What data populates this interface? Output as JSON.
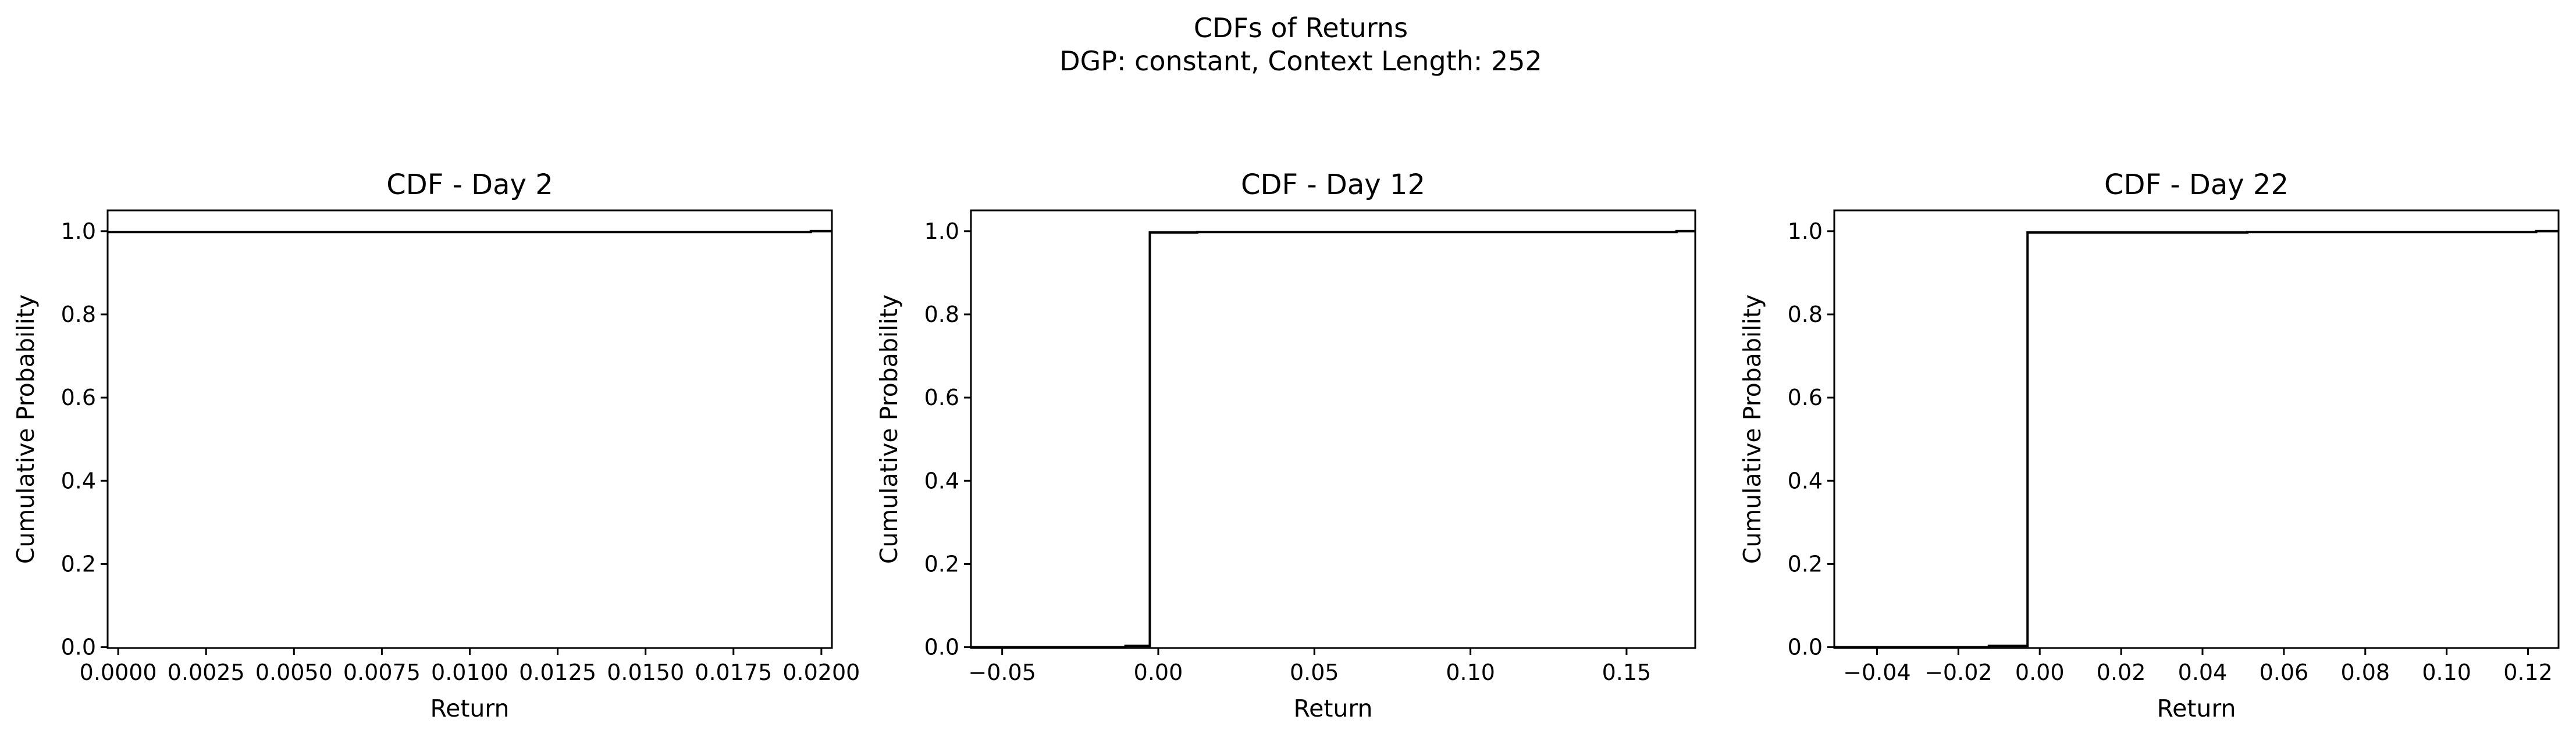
{
  "figure": {
    "title_line1": "CDFs of Returns",
    "title_line2": "DGP: constant, Context Length: 252"
  },
  "colors": {
    "line": "#000000",
    "axes": "#000000",
    "background": "#ffffff"
  },
  "chart_data": [
    {
      "type": "line",
      "step": true,
      "title": "CDF - Day 2",
      "xlabel": "Return",
      "ylabel": "Cumulative Probability",
      "xlim": [
        -0.0003,
        0.0203
      ],
      "ylim": [
        -0.002,
        1.05
      ],
      "xticks": [
        0.0,
        0.0025,
        0.005,
        0.0075,
        0.01,
        0.0125,
        0.015,
        0.0175,
        0.02
      ],
      "xtick_labels": [
        "0.0000",
        "0.0025",
        "0.0050",
        "0.0075",
        "0.0100",
        "0.0125",
        "0.0150",
        "0.0175",
        "0.0200"
      ],
      "yticks": [
        0.0,
        0.2,
        0.4,
        0.6,
        0.8,
        1.0
      ],
      "ytick_labels": [
        "0.0",
        "0.2",
        "0.4",
        "0.6",
        "0.8",
        "1.0"
      ],
      "grid": false,
      "series": [
        {
          "x": [
            -0.0003,
            0.0197,
            0.0197,
            0.0203
          ],
          "y": [
            0.998,
            0.998,
            1.0,
            1.0
          ]
        }
      ]
    },
    {
      "type": "line",
      "step": true,
      "title": "CDF - Day 12",
      "xlabel": "Return",
      "ylabel": "Cumulative Probability",
      "xlim": [
        -0.06,
        0.172
      ],
      "ylim": [
        -0.002,
        1.05
      ],
      "xticks": [
        -0.05,
        0.0,
        0.05,
        0.1,
        0.15
      ],
      "xtick_labels": [
        "−0.05",
        "0.00",
        "0.05",
        "0.10",
        "0.15"
      ],
      "yticks": [
        0.0,
        0.2,
        0.4,
        0.6,
        0.8,
        1.0
      ],
      "ytick_labels": [
        "0.0",
        "0.2",
        "0.4",
        "0.6",
        "0.8",
        "1.0"
      ],
      "grid": false,
      "series": [
        {
          "x": [
            -0.06,
            -0.0105,
            -0.0105,
            -0.0027,
            -0.0027,
            0.0125,
            0.0125,
            0.166,
            0.166,
            0.172
          ],
          "y": [
            0.0,
            0.0,
            0.003,
            0.003,
            0.997,
            0.997,
            0.998,
            0.998,
            1.0,
            1.0
          ]
        }
      ]
    },
    {
      "type": "line",
      "step": true,
      "title": "CDF - Day 22",
      "xlabel": "Return",
      "ylabel": "Cumulative Probability",
      "xlim": [
        -0.0505,
        0.1275
      ],
      "ylim": [
        -0.002,
        1.05
      ],
      "xticks": [
        -0.04,
        -0.02,
        0.0,
        0.02,
        0.04,
        0.06,
        0.08,
        0.1,
        0.12
      ],
      "xtick_labels": [
        "−0.04",
        "−0.02",
        "0.00",
        "0.02",
        "0.04",
        "0.06",
        "0.08",
        "0.10",
        "0.12"
      ],
      "yticks": [
        0.0,
        0.2,
        0.4,
        0.6,
        0.8,
        1.0
      ],
      "ytick_labels": [
        "0.0",
        "0.2",
        "0.4",
        "0.6",
        "0.8",
        "1.0"
      ],
      "grid": false,
      "series": [
        {
          "x": [
            -0.0505,
            -0.0125,
            -0.0125,
            -0.003,
            -0.003,
            0.051,
            0.051,
            0.122,
            0.122,
            0.1275
          ],
          "y": [
            0.0,
            0.0,
            0.003,
            0.003,
            0.997,
            0.997,
            0.998,
            0.998,
            1.0,
            1.0
          ]
        }
      ]
    }
  ]
}
